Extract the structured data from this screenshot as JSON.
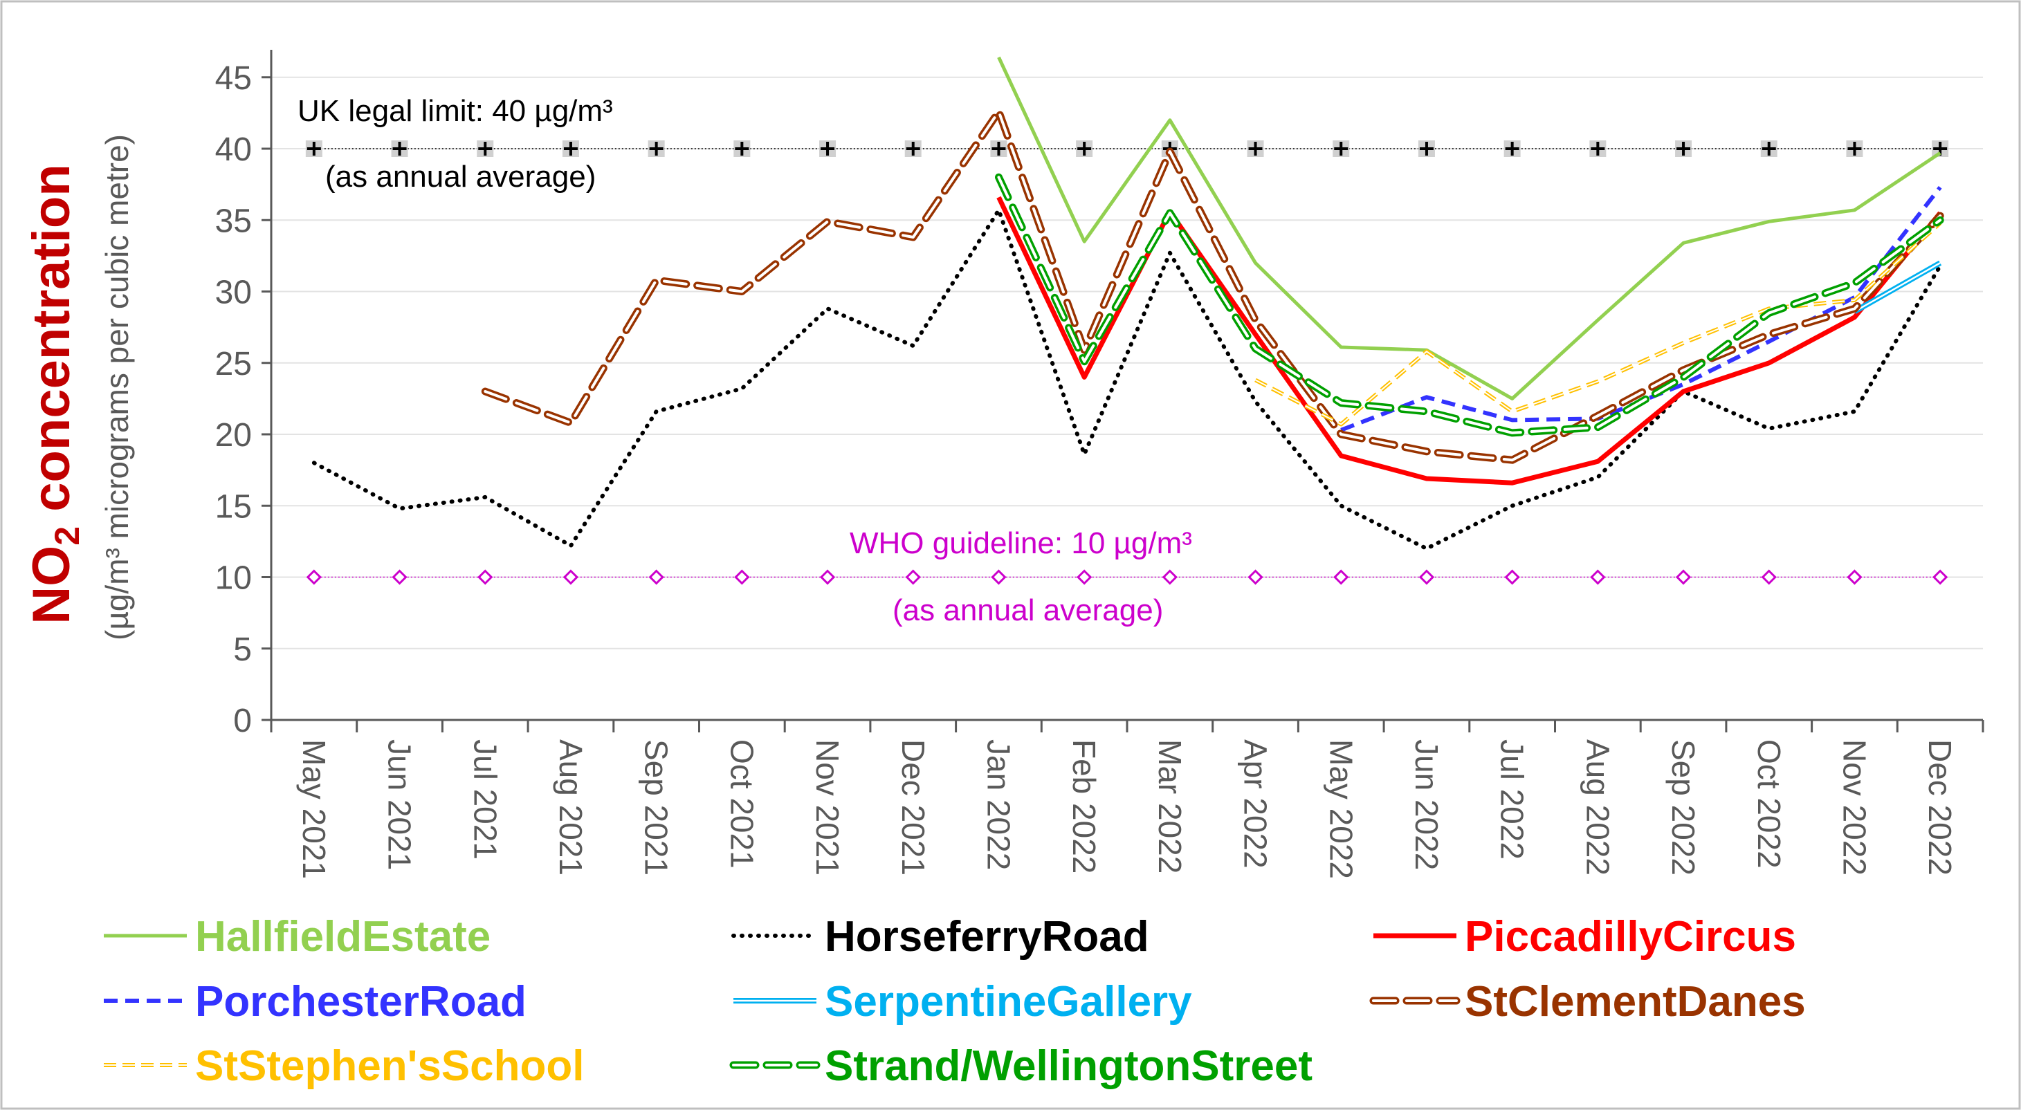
{
  "chart_data": {
    "type": "line",
    "ylabel_main": "NO",
    "ylabel_sub": "2",
    "ylabel_rest": " concentration",
    "ylabel_units": "(µg/m³ micrograms per cubic metre)",
    "ylim": [
      0,
      47
    ],
    "yticks": [
      0,
      5,
      10,
      15,
      20,
      25,
      30,
      35,
      40,
      45
    ],
    "grid": true,
    "categories": [
      "May 2021",
      "Jun 2021",
      "Jul 2021",
      "Aug 2021",
      "Sep 2021",
      "Oct 2021",
      "Nov 2021",
      "Dec 2021",
      "Jan 2022",
      "Feb 2022",
      "Mar 2022",
      "Apr 2022",
      "May 2022",
      "Jun 2022",
      "Jul 2022",
      "Aug 2022",
      "Sep 2022",
      "Oct 2022",
      "Nov 2022",
      "Dec 2022"
    ],
    "reference_lines": [
      {
        "value": 40,
        "label_line1": "UK legal limit: 40 µg/m³",
        "label_line2": "(as annual average)",
        "color": "#000000"
      },
      {
        "value": 10,
        "label_line1": "WHO guideline: 10 µg/m³",
        "label_line2": "(as annual average)",
        "color": "#CC00CC"
      }
    ],
    "legend_position": "bottom",
    "series": [
      {
        "name": "HallfieldEstate",
        "color": "#92D050",
        "style": "solid",
        "values": [
          null,
          null,
          null,
          null,
          null,
          null,
          null,
          null,
          46.4,
          33.5,
          42,
          32,
          26.1,
          25.9,
          22.5,
          28,
          33.4,
          34.9,
          35.7,
          39.7
        ]
      },
      {
        "name": "HorseferryRoad",
        "color": "#000000",
        "style": "dotted",
        "values": [
          18,
          14.8,
          15.6,
          12.2,
          21.6,
          23.2,
          28.8,
          26.2,
          35.7,
          18.6,
          32.7,
          22.3,
          15,
          12,
          15,
          17,
          23,
          20.4,
          21.6,
          31.8
        ]
      },
      {
        "name": "PiccadillyCircus",
        "color": "#FF0000",
        "style": "solid-thick",
        "values": [
          null,
          null,
          null,
          null,
          null,
          null,
          null,
          null,
          36.6,
          24,
          35.6,
          27,
          18.5,
          16.9,
          16.6,
          18.1,
          23,
          25,
          28.2,
          35.5
        ]
      },
      {
        "name": "PorchesterRoad",
        "color": "#3333FF",
        "style": "dashed",
        "values": [
          null,
          null,
          null,
          null,
          null,
          null,
          null,
          null,
          null,
          null,
          null,
          null,
          20.3,
          22.6,
          21,
          21.1,
          23.5,
          26.5,
          29.6,
          37.3
        ]
      },
      {
        "name": "SerpentineGallery",
        "color": "#00B0F0",
        "style": "double",
        "values": [
          null,
          null,
          null,
          null,
          null,
          null,
          null,
          null,
          null,
          null,
          null,
          null,
          null,
          null,
          null,
          null,
          null,
          null,
          28.6,
          32
        ]
      },
      {
        "name": "StClementDanes",
        "color": "#993300",
        "style": "double-dashed",
        "values": [
          null,
          null,
          23,
          20.8,
          30.8,
          30,
          34.9,
          33.8,
          42.6,
          25.9,
          39.8,
          28,
          20,
          18.8,
          18.2,
          21.3,
          24.5,
          27,
          28.8,
          35.3
        ]
      },
      {
        "name": "StStephen'sSchool",
        "color": "#FFC000",
        "style": "double-dashed-thin",
        "values": [
          null,
          null,
          null,
          null,
          null,
          null,
          null,
          null,
          null,
          null,
          null,
          23.8,
          20.7,
          25.8,
          21.6,
          23.7,
          26.4,
          28.8,
          29.4,
          34.8
        ]
      },
      {
        "name": "Strand/WellingtonStreet",
        "color": "#00A000",
        "style": "double-dashed",
        "values": [
          null,
          null,
          null,
          null,
          null,
          null,
          null,
          null,
          38,
          25.1,
          35.5,
          26,
          22.2,
          21.6,
          20.1,
          20.5,
          24,
          28.5,
          30.6,
          35
        ]
      }
    ]
  }
}
